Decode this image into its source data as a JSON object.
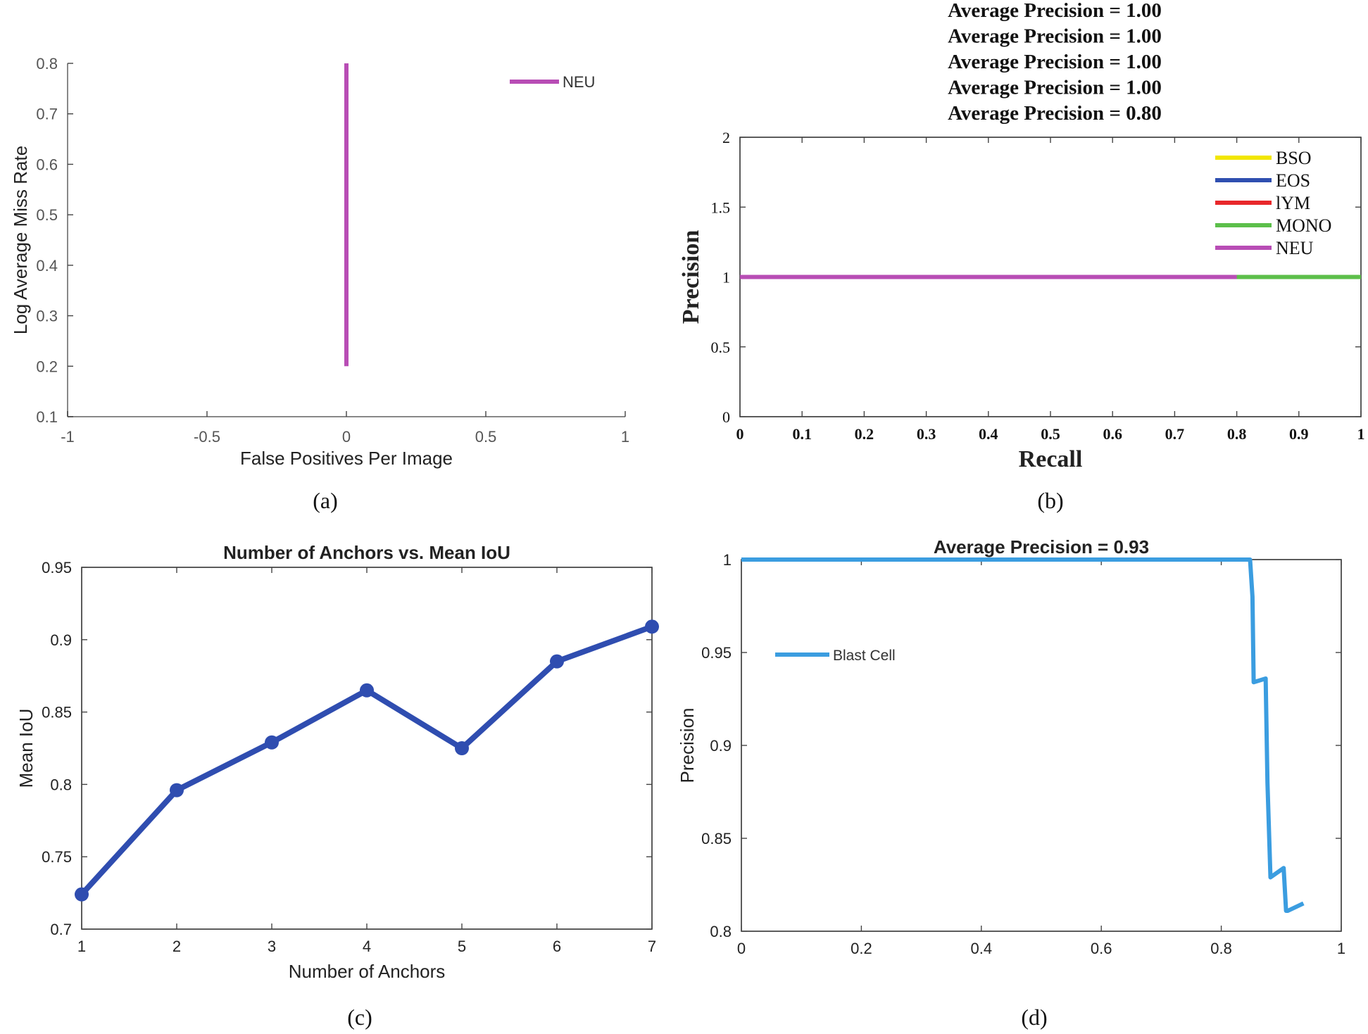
{
  "chart_data": [
    {
      "id": "a",
      "type": "line",
      "panel_label": "(a)",
      "title": "",
      "xlabel": "False Positives Per Image",
      "ylabel": "Log Average Miss Rate",
      "xlim": [
        -1,
        1
      ],
      "ylim": [
        0.1,
        0.8
      ],
      "xticks": [
        -1,
        -0.5,
        0,
        0.5,
        1
      ],
      "xtick_labels": [
        "-1",
        "-0.5",
        "0",
        "0.5",
        "1"
      ],
      "yticks": [
        0.1,
        0.2,
        0.3,
        0.4,
        0.5,
        0.6,
        0.7,
        0.8
      ],
      "ytick_labels": [
        "0.1",
        "0.2",
        "0.3",
        "0.4",
        "0.5",
        "0.6",
        "0.7",
        "0.8"
      ],
      "legend_position": "top-right",
      "series": [
        {
          "name": "NEU",
          "color": "#b84db5",
          "x": [
            0,
            0
          ],
          "y": [
            0.2,
            0.8
          ]
        }
      ]
    },
    {
      "id": "b",
      "type": "line",
      "panel_label": "(b)",
      "title_lines": [
        "Average Precision = 1.00",
        "Average Precision = 1.00",
        "Average Precision = 1.00",
        "Average Precision = 1.00",
        "Average Precision = 0.80"
      ],
      "xlabel": "Recall",
      "ylabel": "Precision",
      "xlim": [
        0,
        1
      ],
      "ylim": [
        0,
        2
      ],
      "xticks": [
        0,
        0.1,
        0.2,
        0.3,
        0.4,
        0.5,
        0.6,
        0.7,
        0.8,
        0.9,
        1
      ],
      "xtick_labels": [
        "0",
        "0.1",
        "0.2",
        "0.3",
        "0.4",
        "0.5",
        "0.6",
        "0.7",
        "0.8",
        "0.9",
        "1"
      ],
      "yticks": [
        0,
        0.5,
        1,
        1.5,
        2
      ],
      "ytick_labels": [
        "0",
        "0.5",
        "1",
        "1.5",
        "2"
      ],
      "legend_position": "top-right",
      "series": [
        {
          "name": "BSO",
          "color": "#f2e600",
          "x": [
            0,
            1
          ],
          "y": [
            1,
            1
          ]
        },
        {
          "name": "EOS",
          "color": "#2f4fb0",
          "x": [
            0,
            1
          ],
          "y": [
            1,
            1
          ]
        },
        {
          "name": "lYM",
          "color": "#e8282b",
          "x": [
            0,
            1
          ],
          "y": [
            1,
            1
          ]
        },
        {
          "name": "MONO",
          "color": "#5cbf4a",
          "x": [
            0,
            1
          ],
          "y": [
            1,
            1
          ]
        },
        {
          "name": "NEU",
          "color": "#b84db5",
          "x": [
            0,
            0.8
          ],
          "y": [
            1,
            1
          ]
        }
      ]
    },
    {
      "id": "c",
      "type": "line",
      "panel_label": "(c)",
      "title": "Number of Anchors vs. Mean IoU",
      "xlabel": "Number of Anchors",
      "ylabel": "Mean IoU",
      "xlim": [
        1,
        7
      ],
      "ylim": [
        0.7,
        0.95
      ],
      "xticks": [
        1,
        2,
        3,
        4,
        5,
        6,
        7
      ],
      "xtick_labels": [
        "1",
        "2",
        "3",
        "4",
        "5",
        "6",
        "7"
      ],
      "yticks": [
        0.7,
        0.75,
        0.8,
        0.85,
        0.9,
        0.95
      ],
      "ytick_labels": [
        "0.7",
        "0.75",
        "0.8",
        "0.85",
        "0.9",
        "0.95"
      ],
      "series": [
        {
          "name": "Mean IoU",
          "color": "#2f4db0",
          "x": [
            1,
            2,
            3,
            4,
            5,
            6,
            7
          ],
          "y": [
            0.724,
            0.796,
            0.829,
            0.865,
            0.825,
            0.885,
            0.909
          ]
        }
      ]
    },
    {
      "id": "d",
      "type": "line",
      "panel_label": "(d)",
      "title": "Average Precision = 0.93",
      "xlabel": "",
      "ylabel": "Precision",
      "xlim": [
        0,
        1
      ],
      "ylim": [
        0.8,
        1
      ],
      "xticks": [
        0,
        0.2,
        0.4,
        0.6,
        0.8,
        1
      ],
      "xtick_labels": [
        "0",
        "0.2",
        "0.4",
        "0.6",
        "0.8",
        "1"
      ],
      "yticks": [
        0.8,
        0.85,
        0.9,
        0.95,
        1
      ],
      "ytick_labels": [
        "0.8",
        "0.85",
        "0.9",
        "0.95",
        "1"
      ],
      "legend_position": "upper-left",
      "series": [
        {
          "name": "Blast Cell",
          "color": "#3b9de0",
          "x": [
            0,
            0.848,
            0.852,
            0.854,
            0.874,
            0.877,
            0.882,
            0.904,
            0.908,
            0.911,
            0.937
          ],
          "y": [
            1,
            1,
            0.98,
            0.934,
            0.936,
            0.88,
            0.829,
            0.834,
            0.811,
            0.811,
            0.815
          ]
        }
      ]
    }
  ]
}
